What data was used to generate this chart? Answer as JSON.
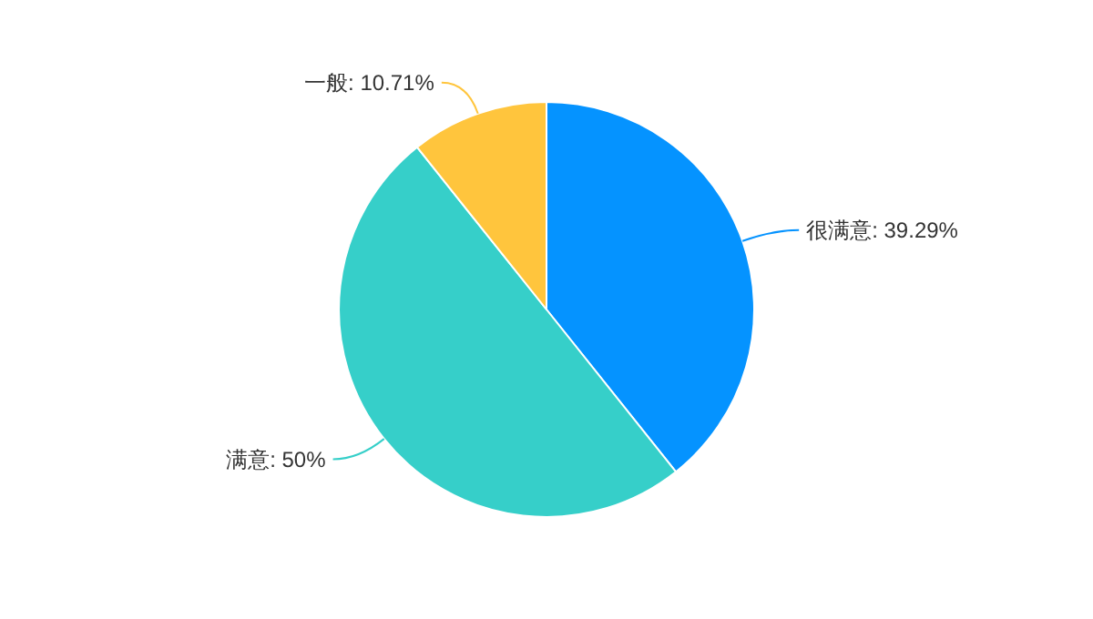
{
  "chart_data": {
    "type": "pie",
    "categories": [
      "很满意",
      "满意",
      "一般"
    ],
    "values": [
      39.29,
      50,
      10.71
    ],
    "value_labels": [
      "39.29%",
      "50%",
      "10.71%"
    ],
    "colors": [
      "#0593ff",
      "#36cfc9",
      "#ffc53d"
    ]
  }
}
